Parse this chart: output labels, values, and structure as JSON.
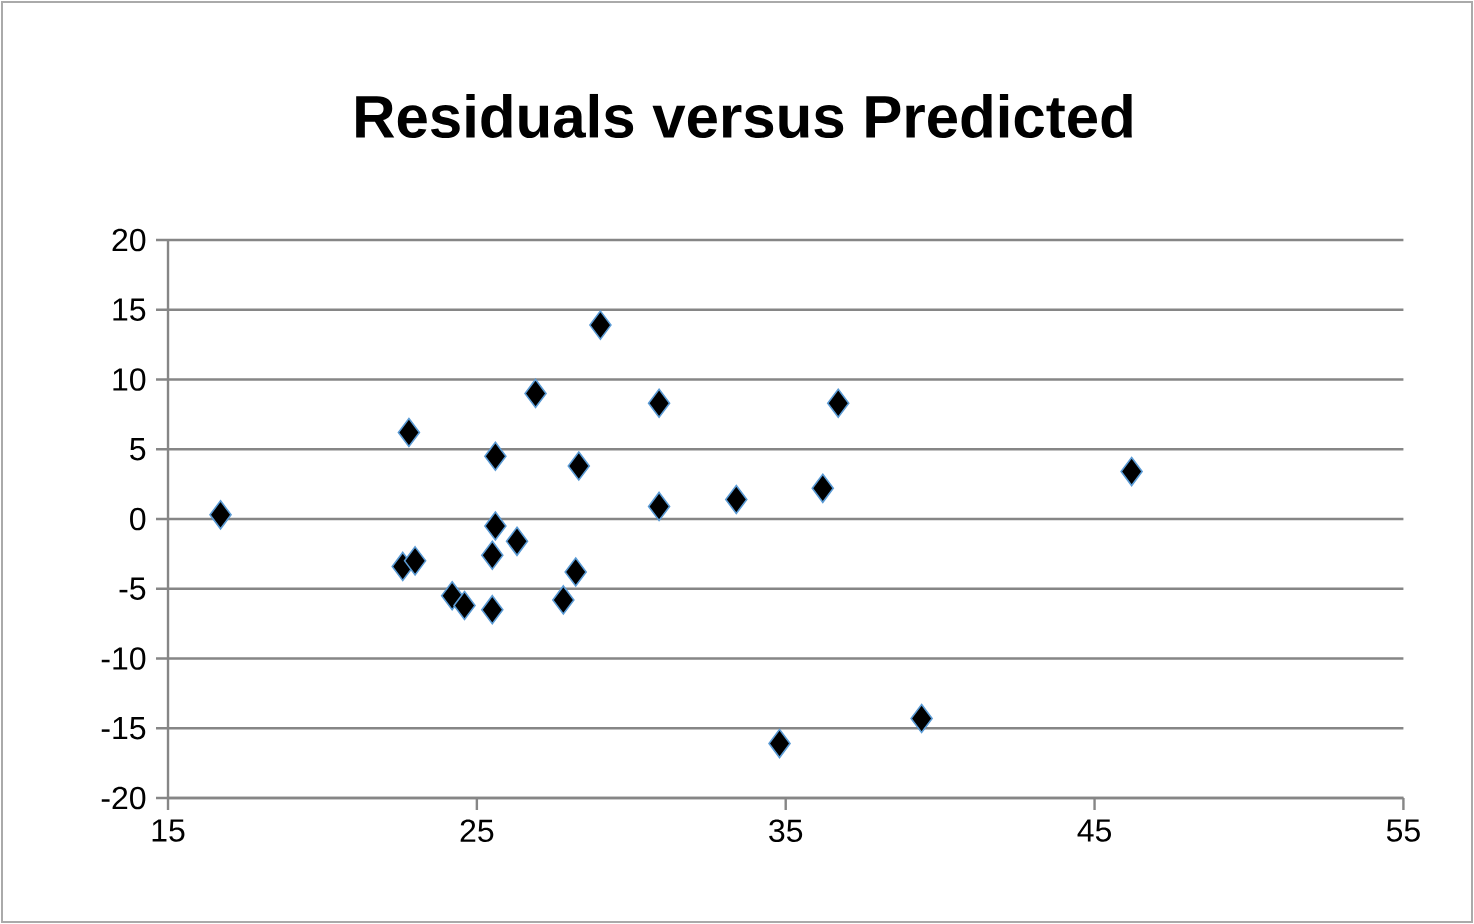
{
  "chart_data": {
    "type": "scatter",
    "title": "Residuals versus Predicted",
    "x": [
      16.7,
      22.8,
      22.6,
      23.0,
      24.2,
      24.6,
      25.5,
      25.5,
      25.6,
      25.6,
      26.3,
      26.9,
      27.8,
      28.2,
      28.3,
      29.0,
      30.9,
      30.9,
      33.4,
      36.2,
      36.7,
      46.2,
      34.8,
      39.4
    ],
    "values": [
      0.3,
      6.2,
      -3.4,
      -3.0,
      -5.5,
      -6.2,
      -6.5,
      -2.6,
      -0.5,
      4.5,
      -1.6,
      9.0,
      -5.8,
      -3.8,
      3.8,
      13.9,
      8.3,
      0.9,
      1.4,
      2.2,
      8.3,
      3.4,
      -16.1,
      -14.3
    ],
    "color": "#000000",
    "xlim": [
      15,
      55
    ],
    "xticks": [
      15,
      25,
      35,
      45,
      55
    ],
    "ylim": [
      -20,
      20
    ],
    "yticks": [
      -20,
      -15,
      -10,
      -5,
      0,
      5,
      10,
      15,
      20
    ],
    "grid": "y",
    "marker": "diamond"
  }
}
